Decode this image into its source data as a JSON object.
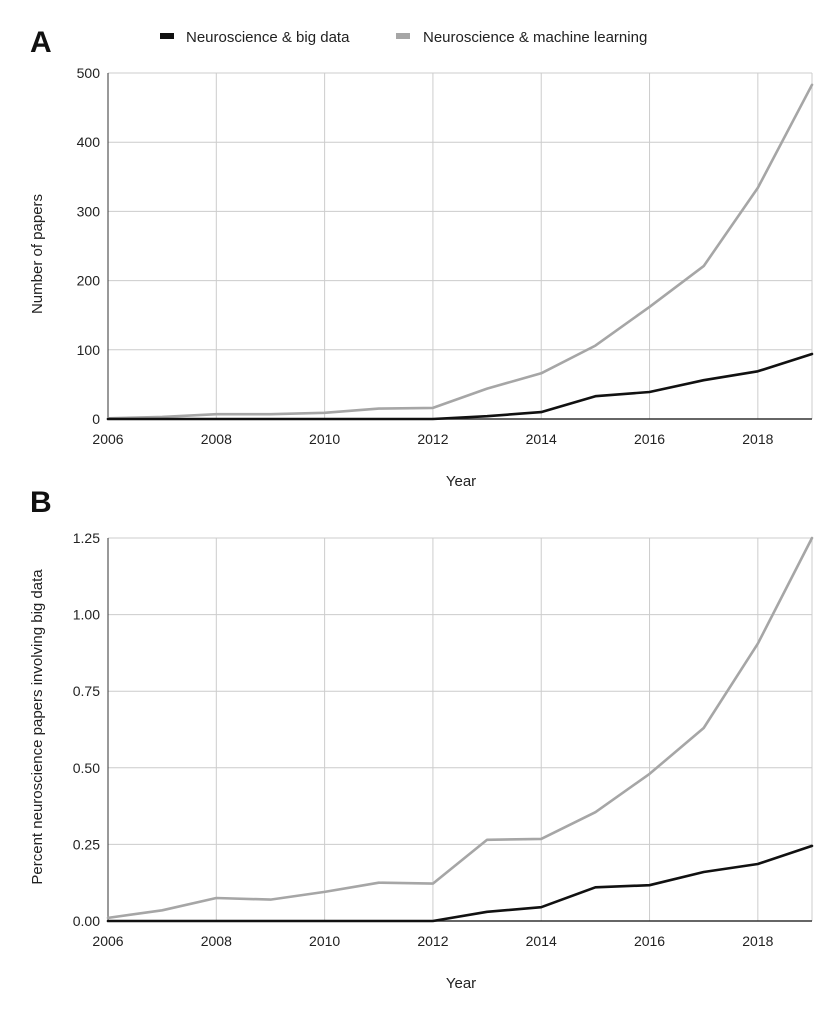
{
  "colors": {
    "big_data": "#111111",
    "machine_learning": "#a6a6a6",
    "grid": "#cccccc",
    "axis": "#333333"
  },
  "legend": {
    "position": "top-center",
    "items": [
      {
        "label": "Neuroscience & big data",
        "color": "#111111"
      },
      {
        "label": "Neuroscience & machine learning",
        "color": "#a6a6a6"
      }
    ]
  },
  "chart_data": [
    {
      "panel": "A",
      "type": "line",
      "xlabel": "Year",
      "ylabel": "Number of papers",
      "xlim": [
        2006,
        2019
      ],
      "ylim": [
        0,
        500
      ],
      "x_ticks": [
        "2006",
        "2008",
        "2010",
        "2012",
        "2014",
        "2016",
        "2018"
      ],
      "y_ticks": [
        "0",
        "100",
        "200",
        "300",
        "400",
        "500"
      ],
      "grid": true,
      "x": [
        2006,
        2007,
        2008,
        2009,
        2010,
        2011,
        2012,
        2013,
        2014,
        2015,
        2016,
        2017,
        2018,
        2019
      ],
      "series": [
        {
          "name": "Neuroscience & big data",
          "color": "#111111",
          "values": [
            0,
            0,
            0,
            0,
            0,
            0,
            0,
            4,
            10,
            33,
            39,
            56,
            69,
            94
          ]
        },
        {
          "name": "Neuroscience & machine learning",
          "color": "#a6a6a6",
          "values": [
            1,
            3,
            7,
            7,
            9,
            15,
            16,
            44,
            66,
            106,
            162,
            221,
            334,
            483
          ]
        }
      ]
    },
    {
      "panel": "B",
      "type": "line",
      "xlabel": "Year",
      "ylabel": "Percent neuroscience papers involving big data",
      "xlim": [
        2006,
        2019
      ],
      "ylim": [
        0,
        1.25
      ],
      "x_ticks": [
        "2006",
        "2008",
        "2010",
        "2012",
        "2014",
        "2016",
        "2018"
      ],
      "y_ticks": [
        "0.00",
        "0.25",
        "0.50",
        "0.75",
        "1.00",
        "1.25"
      ],
      "grid": true,
      "x": [
        2006,
        2007,
        2008,
        2009,
        2010,
        2011,
        2012,
        2013,
        2014,
        2015,
        2016,
        2017,
        2018,
        2019
      ],
      "series": [
        {
          "name": "Neuroscience & big data",
          "color": "#111111",
          "values": [
            0,
            0,
            0,
            0,
            0,
            0,
            0,
            0.03,
            0.045,
            0.11,
            0.117,
            0.16,
            0.186,
            0.245
          ]
        },
        {
          "name": "Neuroscience & machine learning",
          "color": "#a6a6a6",
          "values": [
            0.01,
            0.035,
            0.075,
            0.07,
            0.095,
            0.125,
            0.122,
            0.265,
            0.268,
            0.355,
            0.48,
            0.63,
            0.905,
            1.25
          ]
        }
      ]
    }
  ]
}
